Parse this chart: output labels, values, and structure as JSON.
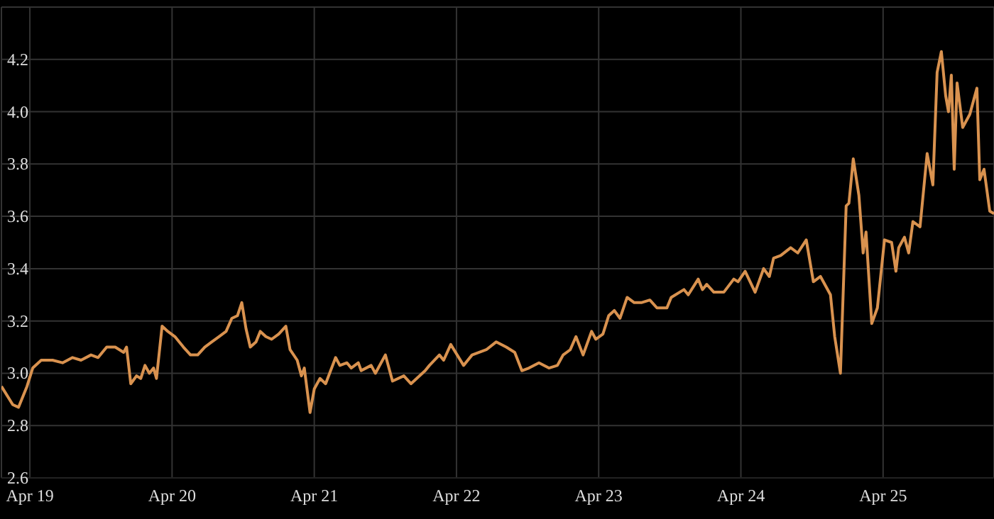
{
  "chart_data": {
    "type": "line",
    "x": [
      "--04-18T19:12",
      "--04-18T21:07",
      "--04-18T22:05",
      "--04-18T23:31",
      "--04-19T00:29",
      "--04-19T01:55",
      "--04-19T03:50",
      "--04-19T05:31",
      "--04-19T07:12",
      "--04-19T08:38",
      "--04-19T10:19",
      "--04-19T11:31",
      "--04-19T12:58",
      "--04-19T14:24",
      "--04-19T15:50",
      "--04-19T16:19",
      "--04-19T17:02",
      "--04-19T18:00",
      "--04-19T18:43",
      "--04-19T19:26",
      "--04-19T20:10",
      "--04-19T20:53",
      "--04-19T21:22",
      "--04-19T22:19",
      "--04-19T23:17",
      "--04-20T00:29",
      "--04-20T01:55",
      "--04-20T03:07",
      "--04-20T04:19",
      "--04-20T05:31",
      "--04-20T06:43",
      "--04-20T07:55",
      "--04-20T09:07",
      "--04-20T10:05",
      "--04-20T11:02",
      "--04-20T11:46",
      "--04-20T12:29",
      "--04-20T13:12",
      "--04-20T14:10",
      "--04-20T14:53",
      "--04-20T15:50",
      "--04-20T16:48",
      "--04-20T18:00",
      "--04-20T19:12",
      "--04-20T19:55",
      "--04-20T21:07",
      "--04-20T21:50",
      "--04-20T22:19",
      "--04-20T23:17",
      "--04-21T00:00",
      "--04-21T00:58",
      "--04-21T01:55",
      "--04-21T03:36",
      "--04-21T04:19",
      "--04-21T05:31",
      "--04-21T06:14",
      "--04-21T07:26",
      "--04-21T07:55",
      "--04-21T09:36",
      "--04-21T10:19",
      "--04-21T12:00",
      "--04-21T13:12",
      "--04-21T15:07",
      "--04-21T16:19",
      "--04-21T18:43",
      "--04-21T19:26",
      "--04-21T21:07",
      "--04-21T21:50",
      "--04-21T23:02",
      "--04-22T01:12",
      "--04-22T02:38",
      "--04-22T05:02",
      "--04-22T06:43",
      "--04-22T08:24",
      "--04-22T09:50",
      "--04-22T11:02",
      "--04-22T12:14",
      "--04-22T13:55",
      "--04-22T15:36",
      "--04-22T17:02",
      "--04-22T18:00",
      "--04-22T19:12",
      "--04-22T20:10",
      "--04-22T21:22",
      "--04-22T22:48",
      "--04-22T23:31",
      "--04-23T00:43",
      "--04-23T01:41",
      "--04-23T02:38",
      "--04-23T03:36",
      "--04-23T04:48",
      "--04-23T06:00",
      "--04-23T07:12",
      "--04-23T08:38",
      "--04-23T09:50",
      "--04-23T11:31",
      "--04-23T12:14",
      "--04-23T14:24",
      "--04-23T15:07",
      "--04-23T16:48",
      "--04-23T17:31",
      "--04-23T18:14",
      "--04-23T19:26",
      "--04-23T21:07",
      "--04-23T22:48",
      "--04-23T23:31",
      "--04-24T00:43",
      "--04-24T02:24",
      "--04-24T03:50",
      "--04-24T04:48",
      "--04-24T05:31",
      "--04-24T06:43",
      "--04-24T08:24",
      "--04-24T09:36",
      "--04-24T11:02",
      "--04-24T12:14",
      "--04-24T13:26",
      "--04-24T15:07",
      "--04-24T15:50",
      "--04-24T16:48",
      "--04-24T17:46",
      "--04-24T18:14",
      "--04-24T18:58",
      "--04-24T19:55",
      "--04-24T20:38",
      "--04-24T21:07",
      "--04-24T22:05",
      "--04-24T23:02",
      "--04-25T00:14",
      "--04-25T01:26",
      "--04-25T02:10",
      "--04-25T02:38",
      "--04-25T03:36",
      "--04-25T04:19",
      "--04-25T05:02",
      "--04-25T06:14",
      "--04-25T07:26",
      "--04-25T08:24",
      "--04-25T09:07",
      "--04-25T09:50",
      "--04-25T10:34",
      "--04-25T11:02",
      "--04-25T11:31",
      "--04-25T12:00",
      "--04-25T12:29",
      "--04-25T13:26",
      "--04-25T14:38",
      "--04-25T15:50",
      "--04-25T16:19",
      "--04-25T17:02",
      "--04-25T18:00",
      "--04-25T18:43"
    ],
    "values": [
      2.95,
      2.88,
      2.87,
      2.95,
      3.02,
      3.05,
      3.05,
      3.04,
      3.06,
      3.05,
      3.07,
      3.06,
      3.1,
      3.1,
      3.08,
      3.1,
      2.96,
      2.99,
      2.98,
      3.03,
      3.0,
      3.02,
      2.98,
      3.18,
      3.16,
      3.14,
      3.1,
      3.07,
      3.07,
      3.1,
      3.12,
      3.14,
      3.16,
      3.21,
      3.22,
      3.27,
      3.17,
      3.1,
      3.12,
      3.16,
      3.14,
      3.13,
      3.15,
      3.18,
      3.09,
      3.05,
      2.99,
      3.02,
      2.85,
      2.94,
      2.98,
      2.96,
      3.06,
      3.03,
      3.04,
      3.02,
      3.04,
      3.01,
      3.03,
      3.0,
      3.07,
      2.97,
      2.99,
      2.96,
      3.01,
      3.03,
      3.07,
      3.05,
      3.11,
      3.03,
      3.07,
      3.09,
      3.12,
      3.1,
      3.08,
      3.01,
      3.02,
      3.04,
      3.02,
      3.03,
      3.07,
      3.09,
      3.14,
      3.07,
      3.16,
      3.13,
      3.15,
      3.22,
      3.24,
      3.21,
      3.29,
      3.27,
      3.27,
      3.28,
      3.25,
      3.25,
      3.29,
      3.32,
      3.3,
      3.36,
      3.32,
      3.34,
      3.31,
      3.31,
      3.36,
      3.35,
      3.39,
      3.31,
      3.4,
      3.37,
      3.44,
      3.45,
      3.48,
      3.46,
      3.51,
      3.35,
      3.37,
      3.3,
      3.14,
      3.0,
      3.64,
      3.65,
      3.82,
      3.68,
      3.46,
      3.54,
      3.19,
      3.25,
      3.51,
      3.5,
      3.39,
      3.48,
      3.52,
      3.46,
      3.58,
      3.56,
      3.84,
      3.72,
      4.15,
      4.23,
      4.06,
      4.0,
      4.14,
      3.78,
      4.11,
      3.94,
      3.99,
      4.09,
      3.74,
      3.78,
      3.62,
      3.61
    ],
    "color": "#d9924f",
    "xlim": [
      "--04-18T19:12",
      "--04-25T18:43"
    ],
    "xticks": [
      {
        "value": "--04-19",
        "label": "Apr 19"
      },
      {
        "value": "--04-20",
        "label": "Apr 20"
      },
      {
        "value": "--04-21",
        "label": "Apr 21"
      },
      {
        "value": "--04-22",
        "label": "Apr 22"
      },
      {
        "value": "--04-23",
        "label": "Apr 23"
      },
      {
        "value": "--04-24",
        "label": "Apr 24"
      },
      {
        "value": "--04-25",
        "label": "Apr 25"
      }
    ],
    "ylim": [
      2.6,
      4.4
    ],
    "yticks": [
      2.6,
      2.8,
      {
        "value": 3,
        "label": "3.0"
      },
      3.2,
      3.4,
      3.6,
      3.8,
      {
        "value": 4,
        "label": "4.0"
      },
      4.2
    ],
    "grid": true
  }
}
